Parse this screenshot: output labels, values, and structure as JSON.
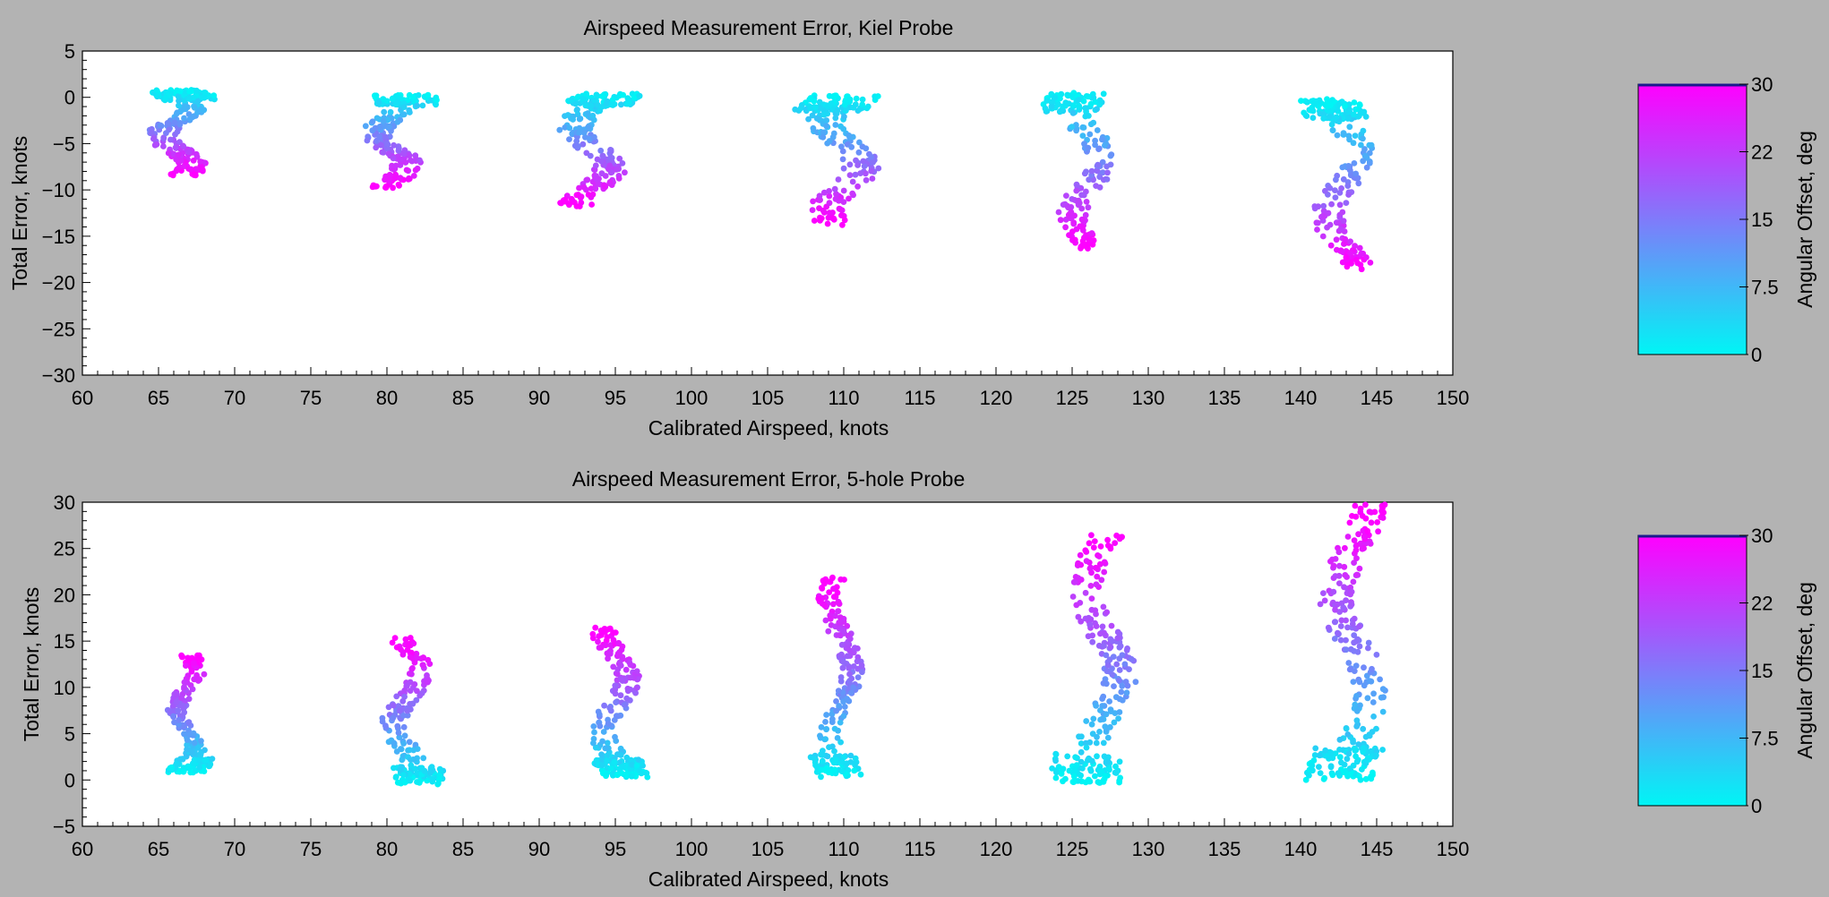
{
  "figure": {
    "background": "#b3b3b3",
    "cmap": {
      "low": "#00f5f5",
      "high": "#ff00ff",
      "border_top": "#1a1a8c"
    }
  },
  "chart_data": [
    {
      "type": "scatter",
      "title": "Airspeed Measurement Error, Kiel Probe",
      "xlabel": "Calibrated Airspeed, knots",
      "ylabel": "Total Error, knots",
      "xlim": [
        60,
        150
      ],
      "ylim": [
        -30,
        5
      ],
      "xticks": [
        60,
        65,
        70,
        75,
        80,
        85,
        90,
        95,
        100,
        105,
        110,
        115,
        120,
        125,
        130,
        135,
        140,
        145,
        150
      ],
      "yticks": [
        5,
        0,
        -5,
        -10,
        -15,
        -20,
        -25,
        -30
      ],
      "grid": false,
      "colorbar": {
        "label": "Angular Offset, deg",
        "range": [
          0,
          30
        ],
        "ticks": [
          "30",
          "22",
          "15",
          "7.5",
          "0"
        ]
      },
      "clusters": [
        {
          "x_center": 66.2,
          "x_min": 64.0,
          "x_max": 68.3,
          "y_min": -8.5,
          "y_max": 0.8,
          "points": 230
        },
        {
          "x_center": 80.3,
          "x_min": 78.0,
          "x_max": 82.5,
          "y_min": -9.8,
          "y_max": 0.3,
          "points": 200
        },
        {
          "x_center": 93.5,
          "x_min": 91.0,
          "x_max": 96.0,
          "y_min": -11.8,
          "y_max": 0.5,
          "points": 230
        },
        {
          "x_center": 110.0,
          "x_min": 107.8,
          "x_max": 113.0,
          "y_min": -14.0,
          "y_max": 0.2,
          "points": 200
        },
        {
          "x_center": 126.0,
          "x_min": 123.8,
          "x_max": 128.2,
          "y_min": -16.5,
          "y_max": 0.5,
          "points": 200
        },
        {
          "x_center": 142.8,
          "x_min": 140.5,
          "x_max": 145.0,
          "y_min": -19.0,
          "y_max": -0.2,
          "points": 230
        }
      ]
    },
    {
      "type": "scatter",
      "title": "Airspeed Measurement Error, 5-hole Probe",
      "xlabel": "Calibrated Airspeed, knots",
      "ylabel": "Total Error, knots",
      "xlim": [
        60,
        150
      ],
      "ylim": [
        -5,
        30
      ],
      "xticks": [
        60,
        65,
        70,
        75,
        80,
        85,
        90,
        95,
        100,
        105,
        110,
        115,
        120,
        125,
        130,
        135,
        140,
        145,
        150
      ],
      "yticks": [
        30,
        25,
        20,
        15,
        10,
        5,
        0,
        -5
      ],
      "grid": false,
      "colorbar": {
        "label": "Angular Offset, deg",
        "range": [
          0,
          30
        ],
        "ticks": [
          "30",
          "22",
          "15",
          "7.5",
          "0"
        ]
      },
      "clusters": [
        {
          "x_center": 66.8,
          "x_min": 65.5,
          "x_max": 68.3,
          "y_min": 0.8,
          "y_max": 13.5,
          "points": 200
        },
        {
          "x_center": 81.3,
          "x_min": 79.3,
          "x_max": 83.0,
          "y_min": -0.5,
          "y_max": 15.5,
          "points": 200
        },
        {
          "x_center": 95.0,
          "x_min": 92.8,
          "x_max": 96.5,
          "y_min": 0.3,
          "y_max": 16.5,
          "points": 220
        },
        {
          "x_center": 109.8,
          "x_min": 108.0,
          "x_max": 111.3,
          "y_min": 0.2,
          "y_max": 22.0,
          "points": 230
        },
        {
          "x_center": 127.0,
          "x_min": 124.0,
          "x_max": 129.0,
          "y_min": -0.3,
          "y_max": 26.8,
          "points": 260
        },
        {
          "x_center": 143.5,
          "x_min": 140.5,
          "x_max": 145.5,
          "y_min": 0.0,
          "y_max": 29.8,
          "points": 280
        }
      ]
    }
  ]
}
